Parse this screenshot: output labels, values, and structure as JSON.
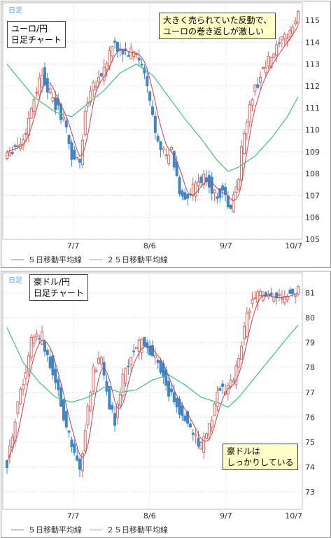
{
  "chart_data": [
    {
      "type": "candlestick",
      "freq_label": "日足",
      "title": "ユーロ/円\n日足チャート",
      "annotation": "大きく売られていた反動で、\nユーロの巻き返しが激しい",
      "x_ticks": [
        "7/7",
        "8/6",
        "9/7",
        "10/7"
      ],
      "y_ticks": [
        105,
        106,
        107,
        108,
        109,
        110,
        111,
        112,
        113,
        114,
        115
      ],
      "ylim": [
        105,
        115.8
      ],
      "legend": [
        "５日移動平均線",
        "２５日移動平均線"
      ],
      "colors": {
        "up": "#d9665a",
        "down": "#3f86c8",
        "ma5": "#c0405a",
        "ma25": "#3fbf7f"
      },
      "close_anchors": [
        [
          0,
          109
        ],
        [
          6,
          109.5
        ],
        [
          10,
          111.5
        ],
        [
          13,
          112.6
        ],
        [
          17,
          111.3
        ],
        [
          21,
          110.5
        ],
        [
          24,
          108.8
        ],
        [
          27,
          108.5
        ],
        [
          29,
          110.8
        ],
        [
          31,
          112
        ],
        [
          35,
          112.5
        ],
        [
          39,
          113.8
        ],
        [
          44,
          113.5
        ],
        [
          48,
          113.5
        ],
        [
          51,
          112.5
        ],
        [
          55,
          110
        ],
        [
          59,
          108.7
        ],
        [
          61,
          109
        ],
        [
          64,
          107.2
        ],
        [
          67,
          106.8
        ],
        [
          70,
          107.5
        ],
        [
          74,
          107.8
        ],
        [
          77,
          107
        ],
        [
          80,
          107.2
        ],
        [
          83,
          106.3
        ],
        [
          86,
          108
        ],
        [
          88,
          110
        ],
        [
          91,
          111.5
        ],
        [
          94,
          112.5
        ],
        [
          98,
          113.3
        ],
        [
          102,
          114
        ],
        [
          105,
          114.5
        ],
        [
          108,
          115.2
        ]
      ],
      "ma25_anchors": [
        [
          0,
          113
        ],
        [
          10,
          111.5
        ],
        [
          18,
          110.8
        ],
        [
          24,
          110.6
        ],
        [
          30,
          111.2
        ],
        [
          36,
          111.8
        ],
        [
          42,
          112.6
        ],
        [
          48,
          113
        ],
        [
          54,
          112.5
        ],
        [
          60,
          111.5
        ],
        [
          66,
          110.5
        ],
        [
          72,
          109.6
        ],
        [
          78,
          108.6
        ],
        [
          82,
          108.1
        ],
        [
          86,
          108.3
        ],
        [
          92,
          108.8
        ],
        [
          98,
          109.6
        ],
        [
          104,
          110.6
        ],
        [
          108,
          111.5
        ]
      ]
    },
    {
      "type": "candlestick",
      "freq_label": "日足",
      "title": "豪ドル/円\n日足チャート",
      "annotation": "豪ドルは\nしっかりしている",
      "x_ticks": [
        "7/7",
        "8/6",
        "9/7",
        "10/7"
      ],
      "y_ticks": [
        73,
        74,
        75,
        76,
        77,
        78,
        79,
        80,
        81
      ],
      "ylim": [
        72.3,
        81.8
      ],
      "legend": [
        "５日移動平均線",
        "２５日移動平均線"
      ],
      "colors": {
        "up": "#d9665a",
        "down": "#3f86c8",
        "ma5": "#c0405a",
        "ma25": "#3fbf7f"
      },
      "close_anchors": [
        [
          0,
          74.2
        ],
        [
          5,
          77
        ],
        [
          9,
          79
        ],
        [
          13,
          79.2
        ],
        [
          16,
          78.2
        ],
        [
          19,
          77
        ],
        [
          22,
          75.5
        ],
        [
          25,
          74.5
        ],
        [
          27,
          73.8
        ],
        [
          29,
          75.5
        ],
        [
          32,
          78
        ],
        [
          35,
          78.2
        ],
        [
          38,
          76.5
        ],
        [
          40,
          75.8
        ],
        [
          43,
          77.5
        ],
        [
          46,
          78.5
        ],
        [
          50,
          79
        ],
        [
          54,
          78.5
        ],
        [
          57,
          78
        ],
        [
          60,
          77
        ],
        [
          63,
          76.5
        ],
        [
          66,
          76
        ],
        [
          69,
          75.3
        ],
        [
          72,
          74.8
        ],
        [
          75,
          75.5
        ],
        [
          78,
          77
        ],
        [
          81,
          77.2
        ],
        [
          84,
          77.5
        ],
        [
          87,
          79
        ],
        [
          90,
          80.5
        ],
        [
          93,
          81
        ],
        [
          97,
          80.8
        ],
        [
          101,
          80.8
        ],
        [
          104,
          80.9
        ],
        [
          108,
          81.1
        ]
      ],
      "ma25_anchors": [
        [
          0,
          79.6
        ],
        [
          6,
          78.2
        ],
        [
          12,
          77.4
        ],
        [
          18,
          76.8
        ],
        [
          24,
          76.6
        ],
        [
          30,
          76.8
        ],
        [
          36,
          77.2
        ],
        [
          42,
          77
        ],
        [
          48,
          77.1
        ],
        [
          54,
          77.5
        ],
        [
          60,
          77.7
        ],
        [
          66,
          77.3
        ],
        [
          72,
          76.8
        ],
        [
          78,
          76.6
        ],
        [
          82,
          76.4
        ],
        [
          86,
          76.8
        ],
        [
          92,
          77.6
        ],
        [
          98,
          78.4
        ],
        [
          104,
          79.2
        ],
        [
          108,
          79.7
        ]
      ]
    }
  ]
}
